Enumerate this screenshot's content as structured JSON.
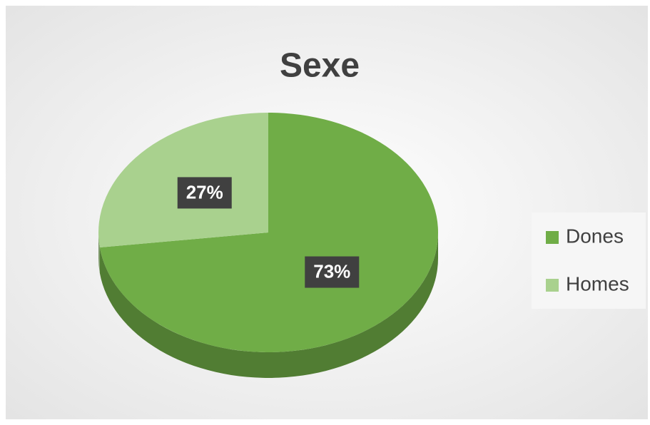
{
  "chart_data": {
    "type": "pie",
    "title": "Sexe",
    "categories": [
      "Dones",
      "Homes"
    ],
    "values": [
      73,
      27
    ],
    "value_labels": [
      "73%",
      "27%"
    ],
    "colors": [
      "#70ad47",
      "#a9d18e"
    ],
    "legend": "right"
  }
}
